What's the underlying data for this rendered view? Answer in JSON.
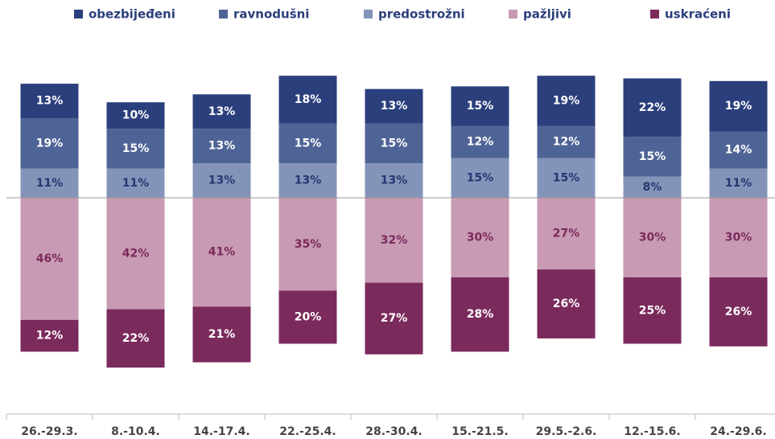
{
  "chart_data": {
    "type": "diverging-bar",
    "categories": [
      "26.-29.3.",
      "8.-10.4.",
      "14.-17.4.",
      "22.-25.4.",
      "28.-30.4.",
      "15.-21.5.",
      "29.5.-2.6.",
      "12.-15.6.",
      "24.-29.6."
    ],
    "series": [
      {
        "name": "obezbijeđeni",
        "color": "#2b3f7c",
        "label_color": "#ffffff",
        "values": [
          13,
          10,
          13,
          18,
          13,
          15,
          19,
          22,
          19
        ],
        "value_labels": [
          "13%",
          "10%",
          "13%",
          "18%",
          "13%",
          "15%",
          "19%",
          "22%",
          "19%"
        ]
      },
      {
        "name": "ravnodušni",
        "color": "#4f6496",
        "label_color": "#ffffff",
        "values": [
          19,
          15,
          13,
          15,
          15,
          12,
          12,
          15,
          14
        ],
        "value_labels": [
          "19%",
          "15%",
          "13%",
          "15%",
          "15%",
          "12%",
          "12%",
          "15%",
          "14%"
        ]
      },
      {
        "name": "predostrožni",
        "color": "#8494b9",
        "label_color": "#243870",
        "values": [
          11,
          11,
          13,
          13,
          13,
          15,
          15,
          8,
          11
        ],
        "value_labels": [
          "11%",
          "11%",
          "13%",
          "13%",
          "13%",
          "15%",
          "15%",
          "8%",
          "11%"
        ]
      },
      {
        "name": "pažljivi",
        "color": "#c89ab3",
        "label_color": "#7b2a5c",
        "values": [
          46,
          42,
          41,
          35,
          32,
          30,
          27,
          30,
          30
        ],
        "value_labels": [
          "46%",
          "42%",
          "41%",
          "35%",
          "32%",
          "30%",
          "27%",
          "30%",
          "30%"
        ]
      },
      {
        "name": "uskraćeni",
        "color": "#7b2a5c",
        "label_color": "#ffffff",
        "values": [
          12,
          22,
          21,
          20,
          27,
          28,
          26,
          25,
          26
        ],
        "value_labels": [
          "12%",
          "22%",
          "21%",
          "20%",
          "27%",
          "28%",
          "26%",
          "25%",
          "26%"
        ]
      }
    ]
  }
}
